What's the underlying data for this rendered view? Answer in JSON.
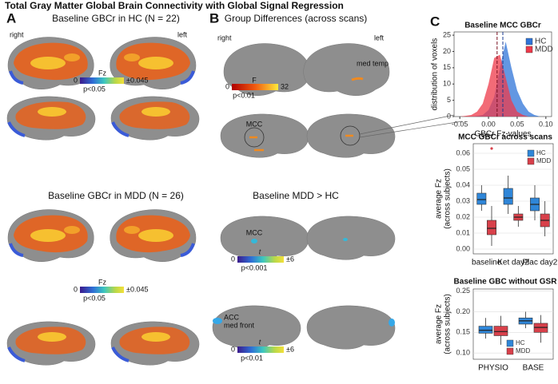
{
  "title": "Total Gray Matter Global Brain Connectivity with Global Signal Regression",
  "panels": [
    {
      "letter": "A",
      "sections": [
        {
          "heading": "Baseline GBCr in HC (N = 22)",
          "side_labels": [
            "right",
            "left"
          ],
          "colorbar": {
            "min": 0,
            "name": "Fz",
            "max": "±0.045",
            "threshold": "p<0.05"
          }
        },
        {
          "heading": "Baseline GBCr in MDD (N = 26)",
          "colorbar": {
            "min": 0,
            "name": "Fz",
            "max": "±0.045",
            "threshold": "p<0.05"
          }
        }
      ]
    },
    {
      "letter": "B",
      "sections": [
        {
          "heading": "Group Differences (across scans)",
          "side_labels": [
            "right",
            "left"
          ],
          "region_labels": [
            "med temp",
            "MCC"
          ],
          "colorbar": {
            "min": 0,
            "name": "F",
            "max": 32,
            "threshold": "p<0.01"
          }
        },
        {
          "heading": "Baseline MDD > HC",
          "region_labels": [
            "MCC"
          ],
          "colorbar": {
            "min": 0,
            "name": "t",
            "max": "±6",
            "threshold": "p<0.001"
          }
        },
        {
          "region_labels": [
            "ACC",
            "med front"
          ],
          "colorbar": {
            "min": 0,
            "name": "t",
            "max": "±6",
            "threshold": "p<0.01"
          }
        }
      ]
    },
    {
      "letter": "C"
    }
  ],
  "chart_data": [
    {
      "type": "density",
      "title": "Baseline MCC GBCr",
      "xlabel": "GBCr Fz-values",
      "ylabel": [
        "distribution of voxels"
      ],
      "x": [
        -0.05,
        -0.04,
        -0.03,
        -0.02,
        -0.01,
        0,
        0.01,
        0.02,
        0.03,
        0.04,
        0.05,
        0.06,
        0.07,
        0.08,
        0.09
      ],
      "series": [
        {
          "name": "HC",
          "color": "#2f74d8",
          "mean": 0.025,
          "values": [
            0,
            0,
            0,
            0.2,
            0.5,
            2,
            6,
            15,
            23,
            15,
            8,
            4,
            1.5,
            0.5,
            0
          ]
        },
        {
          "name": "MDD",
          "color": "#ee3a4a",
          "mean": 0.015,
          "values": [
            0,
            0.2,
            0.5,
            1.5,
            4,
            10,
            18,
            19,
            12,
            5,
            1.5,
            0.5,
            0,
            0,
            0
          ]
        }
      ],
      "xlim": [
        -0.06,
        0.11
      ],
      "xticks": [
        {
          "value": -0.05,
          "label": "-0.05"
        },
        {
          "value": 0,
          "label": "0.00"
        },
        0.05,
        {
          "value": 0.1,
          "label": "0.10"
        }
      ],
      "ylim": [
        0,
        26
      ],
      "yticks": [
        0,
        5,
        10,
        15,
        20,
        25
      ],
      "legend": "top-right"
    },
    {
      "type": "box",
      "title": "MCC GBCr across scans",
      "ylabel": [
        "average Fz",
        "(across subjects)"
      ],
      "categories": [
        "baseline",
        "Ket day2",
        "Plac day2"
      ],
      "series": [
        {
          "name": "HC",
          "color": "#2f86d8",
          "median": [
            0.031,
            0.032,
            0.028
          ],
          "q1": [
            0.028,
            0.028,
            0.024
          ],
          "q3": [
            0.035,
            0.038,
            0.032
          ],
          "whisker_low": [
            0.024,
            0.022,
            0.018
          ],
          "whisker_high": [
            0.04,
            0.046,
            0.04
          ],
          "outliers": [
            [],
            [],
            []
          ]
        },
        {
          "name": "MDD",
          "color": "#d8404a",
          "median": [
            0.013,
            0.02,
            0.018
          ],
          "q1": [
            0.009,
            0.018,
            0.014
          ],
          "q3": [
            0.018,
            0.022,
            0.022
          ],
          "whisker_low": [
            0.002,
            0.014,
            0.008
          ],
          "whisker_high": [
            0.027,
            0.027,
            0.03
          ],
          "outliers": [
            [
              0.063
            ],
            [],
            []
          ]
        }
      ],
      "ylim": [
        -0.003,
        0.066
      ],
      "yticks": [
        {
          "value": 0,
          "label": "0.00"
        },
        0.01,
        0.02,
        0.03,
        0.04,
        0.05,
        0.06
      ],
      "grid": true,
      "legend": "top-right"
    },
    {
      "type": "box",
      "title": "Baseline GBC without GSR",
      "ylabel": [
        "average Fz",
        "(across subjects)"
      ],
      "categories": [
        "PHYSIO",
        "BASE"
      ],
      "series": [
        {
          "name": "HC",
          "color": "#2f86d8",
          "median": [
            0.155,
            0.178
          ],
          "q1": [
            0.148,
            0.17
          ],
          "q3": [
            0.165,
            0.185
          ],
          "whisker_low": [
            0.135,
            0.16
          ],
          "whisker_high": [
            0.185,
            0.2
          ],
          "outliers": [
            [],
            []
          ]
        },
        {
          "name": "MDD",
          "color": "#d8404a",
          "median": [
            0.152,
            0.162
          ],
          "q1": [
            0.142,
            0.15
          ],
          "q3": [
            0.165,
            0.172
          ],
          "whisker_low": [
            0.12,
            0.125
          ],
          "whisker_high": [
            0.19,
            0.192
          ],
          "outliers": [
            [],
            []
          ]
        }
      ],
      "ylim": [
        0.085,
        0.255
      ],
      "yticks": [
        {
          "value": 0.1,
          "label": "0.10"
        },
        0.15,
        {
          "value": 0.2,
          "label": "0.20"
        },
        0.25
      ],
      "grid": true,
      "legend": "bottom"
    }
  ]
}
